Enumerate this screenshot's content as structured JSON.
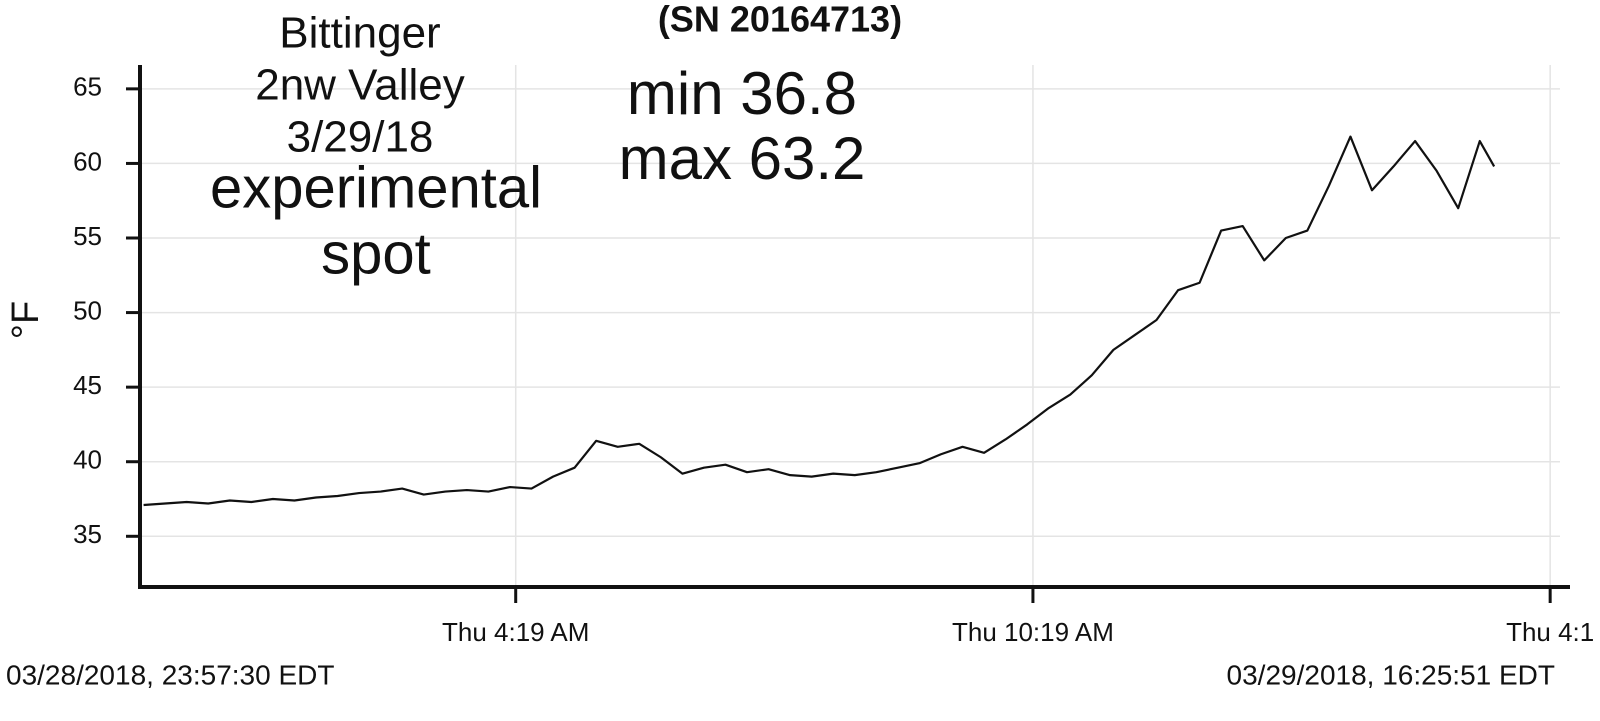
{
  "chart_data": {
    "type": "line",
    "title": "(SN 20164713)",
    "y_label": "°F",
    "annotations": [
      "Bittinger",
      "2nw Valley",
      "3/29/18",
      "experimental",
      "spot",
      "min 36.8",
      "max 63.2"
    ],
    "range_labels": [
      "03/28/2018, 23:57:30 EDT",
      "03/29/2018, 16:25:51 EDT"
    ],
    "xlim": [
      "2018-03-28T23:57:30",
      "2018-03-29T16:25:51"
    ],
    "xticks": [
      {
        "value": "2018-03-29T04:19",
        "label": "Thu 4:19 AM"
      },
      {
        "value": "2018-03-29T10:19",
        "label": "Thu 10:19 AM"
      },
      {
        "value": "2018-03-29T16:19",
        "label": "Thu 4:1"
      }
    ],
    "ylim": [
      31.6,
      66.6
    ],
    "yticks": [
      35,
      40,
      45,
      50,
      55,
      60,
      65
    ],
    "grid": true,
    "color": "#111111",
    "x": [
      "2018-03-29T00:00",
      "2018-03-29T00:15",
      "2018-03-29T00:30",
      "2018-03-29T00:45",
      "2018-03-29T01:00",
      "2018-03-29T01:15",
      "2018-03-29T01:30",
      "2018-03-29T01:45",
      "2018-03-29T02:00",
      "2018-03-29T02:15",
      "2018-03-29T02:30",
      "2018-03-29T02:45",
      "2018-03-29T03:00",
      "2018-03-29T03:15",
      "2018-03-29T03:30",
      "2018-03-29T03:45",
      "2018-03-29T04:00",
      "2018-03-29T04:15",
      "2018-03-29T04:30",
      "2018-03-29T04:45",
      "2018-03-29T05:00",
      "2018-03-29T05:15",
      "2018-03-29T05:30",
      "2018-03-29T05:45",
      "2018-03-29T06:00",
      "2018-03-29T06:15",
      "2018-03-29T06:30",
      "2018-03-29T06:45",
      "2018-03-29T07:00",
      "2018-03-29T07:15",
      "2018-03-29T07:30",
      "2018-03-29T07:45",
      "2018-03-29T08:00",
      "2018-03-29T08:15",
      "2018-03-29T08:30",
      "2018-03-29T08:45",
      "2018-03-29T09:00",
      "2018-03-29T09:15",
      "2018-03-29T09:30",
      "2018-03-29T09:45",
      "2018-03-29T10:00",
      "2018-03-29T10:15",
      "2018-03-29T10:30",
      "2018-03-29T10:45",
      "2018-03-29T11:00",
      "2018-03-29T11:15",
      "2018-03-29T11:30",
      "2018-03-29T11:45",
      "2018-03-29T12:00",
      "2018-03-29T12:15",
      "2018-03-29T12:30",
      "2018-03-29T12:45",
      "2018-03-29T13:00",
      "2018-03-29T13:15",
      "2018-03-29T13:30",
      "2018-03-29T13:45",
      "2018-03-29T14:00",
      "2018-03-29T14:15",
      "2018-03-29T14:30",
      "2018-03-29T14:45",
      "2018-03-29T15:00",
      "2018-03-29T15:15",
      "2018-03-29T15:30",
      "2018-03-29T15:40"
    ],
    "values": [
      37.1,
      37.2,
      37.3,
      37.2,
      37.4,
      37.3,
      37.5,
      37.4,
      37.6,
      37.7,
      37.9,
      38.0,
      38.2,
      37.8,
      38.0,
      38.1,
      38.0,
      38.3,
      38.2,
      39.0,
      39.6,
      41.4,
      41.0,
      41.2,
      40.3,
      39.2,
      39.6,
      39.8,
      39.3,
      39.5,
      39.1,
      39.0,
      39.2,
      39.1,
      39.3,
      39.6,
      39.9,
      40.5,
      41.0,
      40.6,
      41.5,
      42.5,
      43.6,
      44.5,
      45.8,
      47.5,
      48.5,
      49.5,
      51.5,
      52.0,
      55.5,
      55.8,
      53.5,
      55.0,
      55.5,
      58.5,
      61.8,
      58.2,
      59.8,
      61.5,
      59.5,
      57.0,
      61.5,
      59.8
    ]
  }
}
